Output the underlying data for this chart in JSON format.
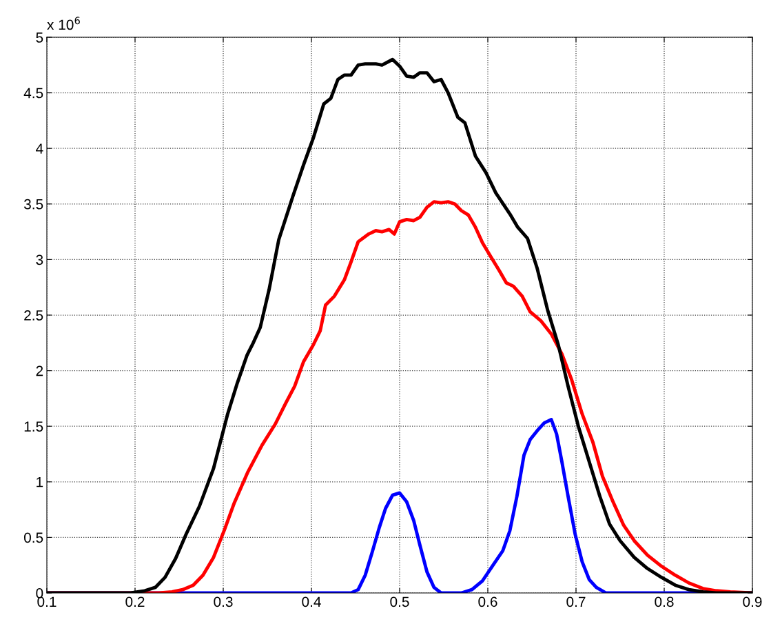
{
  "chart_data": {
    "type": "line",
    "xlim": [
      0.1,
      0.9
    ],
    "ylim": [
      0,
      5
    ],
    "xticks": [
      0.1,
      0.2,
      0.3,
      0.4,
      0.5,
      0.6,
      0.7,
      0.8,
      0.9
    ],
    "yticks": [
      0,
      0.5,
      1,
      1.5,
      2,
      2.5,
      3,
      3.5,
      4,
      4.5,
      5
    ],
    "grid": true,
    "line_style": "solid",
    "marker": "none",
    "annotations": [
      "x 10$^{6}$"
    ],
    "series": [
      {
        "color": "#0000ff",
        "x": [
          0.1,
          0.445,
          0.453,
          0.461,
          0.469,
          0.477,
          0.484,
          0.492,
          0.5,
          0.508,
          0.516,
          0.523,
          0.531,
          0.539,
          0.547,
          0.57,
          0.582,
          0.594,
          0.605,
          0.617,
          0.625,
          0.633,
          0.641,
          0.648,
          0.656,
          0.664,
          0.672,
          0.678,
          0.684,
          0.691,
          0.699,
          0.707,
          0.715,
          0.723,
          0.734,
          0.9
        ],
        "values": [
          0,
          0,
          0.03,
          0.16,
          0.37,
          0.59,
          0.76,
          0.88,
          0.9,
          0.82,
          0.65,
          0.43,
          0.19,
          0.05,
          0,
          0,
          0.03,
          0.11,
          0.24,
          0.38,
          0.56,
          0.87,
          1.24,
          1.38,
          1.46,
          1.53,
          1.56,
          1.43,
          1.18,
          0.87,
          0.53,
          0.28,
          0.12,
          0.05,
          0,
          0
        ]
      },
      {
        "color": "#ff0000",
        "x": [
          0.1,
          0.227,
          0.242,
          0.254,
          0.266,
          0.277,
          0.289,
          0.301,
          0.3125,
          0.328,
          0.344,
          0.359,
          0.371,
          0.381,
          0.391,
          0.402,
          0.41,
          0.416,
          0.426,
          0.4375,
          0.445,
          0.453,
          0.465,
          0.473,
          0.48,
          0.488,
          0.494,
          0.5,
          0.508,
          0.516,
          0.523,
          0.531,
          0.539,
          0.547,
          0.555,
          0.5625,
          0.57,
          0.578,
          0.586,
          0.594,
          0.603,
          0.613,
          0.621,
          0.629,
          0.639,
          0.648,
          0.66,
          0.672,
          0.684,
          0.695,
          0.707,
          0.719,
          0.73,
          0.742,
          0.754,
          0.766,
          0.781,
          0.797,
          0.8125,
          0.828,
          0.844,
          0.859,
          0.875,
          0.9
        ],
        "values": [
          0,
          0,
          0.01,
          0.03,
          0.07,
          0.16,
          0.32,
          0.56,
          0.81,
          1.09,
          1.33,
          1.52,
          1.71,
          1.86,
          2.08,
          2.23,
          2.36,
          2.59,
          2.67,
          2.82,
          2.98,
          3.16,
          3.23,
          3.26,
          3.25,
          3.27,
          3.23,
          3.34,
          3.36,
          3.35,
          3.38,
          3.47,
          3.52,
          3.51,
          3.52,
          3.5,
          3.44,
          3.4,
          3.29,
          3.15,
          3.03,
          2.9,
          2.79,
          2.76,
          2.67,
          2.53,
          2.45,
          2.33,
          2.15,
          1.92,
          1.61,
          1.36,
          1.05,
          0.82,
          0.61,
          0.47,
          0.34,
          0.24,
          0.16,
          0.09,
          0.04,
          0.02,
          0.01,
          0
        ]
      },
      {
        "color": "#000000",
        "x": [
          0.1,
          0.195,
          0.211,
          0.223,
          0.234,
          0.246,
          0.258,
          0.273,
          0.289,
          0.305,
          0.316,
          0.327,
          0.334,
          0.342,
          0.352,
          0.363,
          0.379,
          0.391,
          0.402,
          0.414,
          0.422,
          0.43,
          0.4375,
          0.445,
          0.453,
          0.461,
          0.473,
          0.48,
          0.492,
          0.5,
          0.508,
          0.516,
          0.523,
          0.531,
          0.539,
          0.547,
          0.555,
          0.566,
          0.574,
          0.586,
          0.598,
          0.609,
          0.625,
          0.634,
          0.645,
          0.656,
          0.668,
          0.68,
          0.691,
          0.703,
          0.715,
          0.727,
          0.738,
          0.75,
          0.766,
          0.781,
          0.797,
          0.8125,
          0.828,
          0.844,
          0.859,
          0.9
        ],
        "values": [
          0,
          0,
          0.02,
          0.05,
          0.14,
          0.31,
          0.53,
          0.78,
          1.12,
          1.61,
          1.89,
          2.14,
          2.25,
          2.39,
          2.73,
          3.18,
          3.57,
          3.85,
          4.09,
          4.4,
          4.45,
          4.62,
          4.66,
          4.66,
          4.75,
          4.76,
          4.76,
          4.75,
          4.8,
          4.74,
          4.65,
          4.64,
          4.68,
          4.68,
          4.6,
          4.62,
          4.5,
          4.28,
          4.23,
          3.93,
          3.78,
          3.6,
          3.41,
          3.29,
          3.19,
          2.92,
          2.54,
          2.23,
          1.86,
          1.49,
          1.18,
          0.87,
          0.62,
          0.47,
          0.32,
          0.22,
          0.14,
          0.07,
          0.03,
          0.01,
          0,
          0
        ]
      }
    ]
  }
}
